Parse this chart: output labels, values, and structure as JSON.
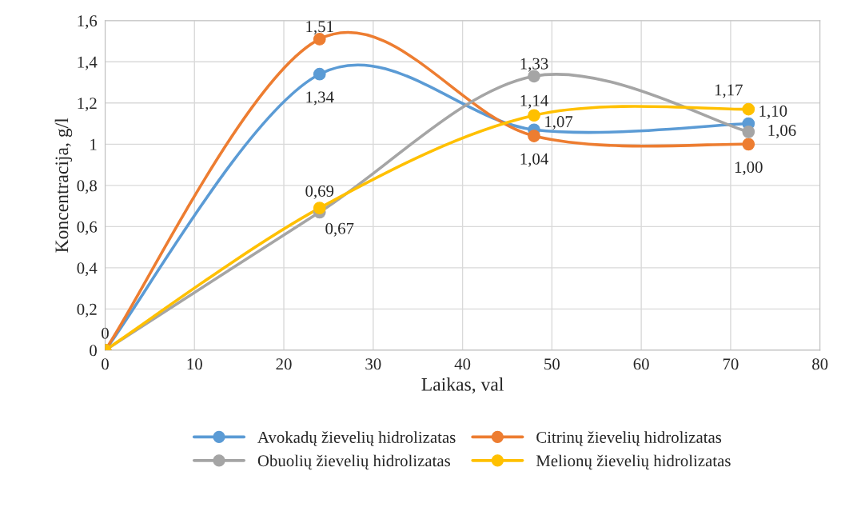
{
  "chart_data": {
    "type": "line",
    "xlabel": "Laikas, val",
    "ylabel": "Koncentracija, g/l",
    "x": [
      0,
      24,
      48,
      72
    ],
    "series": [
      {
        "name": "Avokadų žievelių hidrolizatas",
        "color": "#5b9bd5",
        "values": [
          0,
          1.34,
          1.07,
          1.1
        ],
        "value_labels": [
          "0",
          "1,34",
          "1,07",
          "1,10"
        ]
      },
      {
        "name": "Citrinų žievelių hidrolizatas",
        "color": "#ed7d31",
        "values": [
          0,
          1.51,
          1.04,
          1.0
        ],
        "value_labels": [
          null,
          "1,51",
          "1,04",
          "1,00"
        ]
      },
      {
        "name": "Obuolių žievelių hidrolizatas",
        "color": "#a5a5a5",
        "values": [
          0,
          0.67,
          1.33,
          1.06
        ],
        "value_labels": [
          null,
          "0,67",
          "1,33",
          "1,06"
        ]
      },
      {
        "name": "Melionų žievelių hidrolizatas",
        "color": "#ffc000",
        "values": [
          0,
          0.69,
          1.14,
          1.17
        ],
        "value_labels": [
          null,
          "0,69",
          "1,14",
          "1,17"
        ]
      }
    ],
    "xlim": [
      0,
      80
    ],
    "xticks": [
      0,
      10,
      20,
      30,
      40,
      50,
      60,
      70,
      80
    ],
    "ylim": [
      0,
      1.6
    ],
    "yticks": [
      0,
      {
        "value": 0.2,
        "label": "0,2"
      },
      {
        "value": 0.4,
        "label": "0,4"
      },
      {
        "value": 0.6,
        "label": "0,6"
      },
      {
        "value": 0.8,
        "label": "0,8"
      },
      1,
      {
        "value": 1.2,
        "label": "1,2"
      },
      {
        "value": 1.4,
        "label": "1,4"
      },
      {
        "value": 1.6,
        "label": "1,6"
      }
    ],
    "grid": true,
    "legend": "bottom",
    "marker": "circle",
    "line_style": "solid"
  }
}
